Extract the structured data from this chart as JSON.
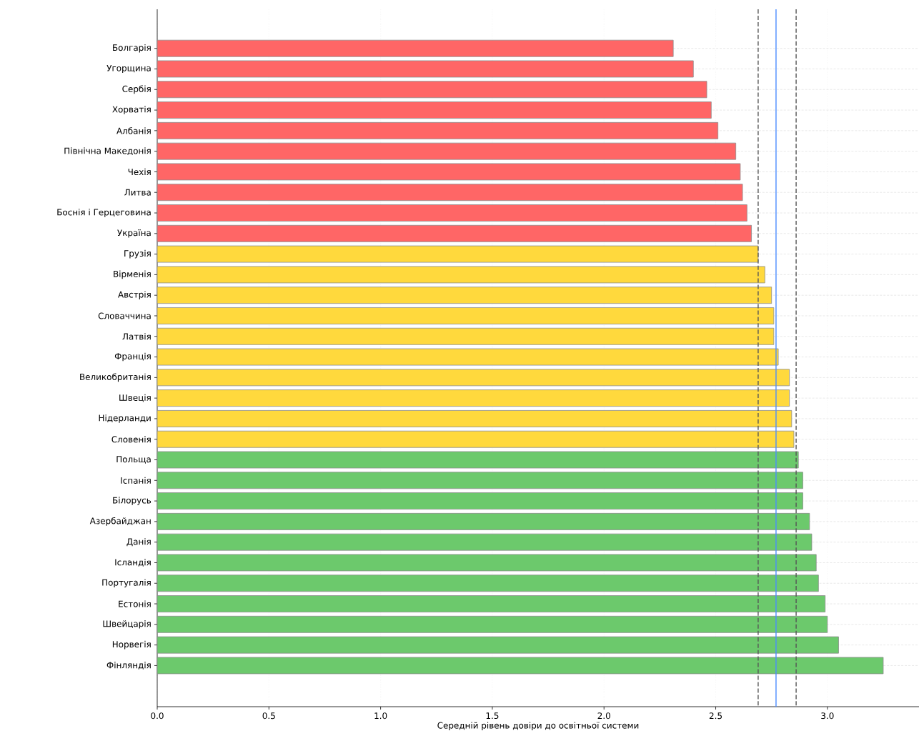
{
  "chart_data": {
    "type": "bar",
    "orientation": "horizontal",
    "xlabel": "Середній рівень довіри до освітньої системи",
    "categories": [
      "Болгарія",
      "Угорщина",
      "Сербія",
      "Хорватія",
      "Албанія",
      "Північна Македонія",
      "Чехія",
      "Литва",
      "Боснія і Герцеговина",
      "Україна",
      "Грузія",
      "Вірменія",
      "Австрія",
      "Словаччина",
      "Латвія",
      "Франція",
      "Великобританія",
      "Швеція",
      "Нідерланди",
      "Словенія",
      "Польща",
      "Іспанія",
      "Білорусь",
      "Азербайджан",
      "Данія",
      "Ісландія",
      "Португалія",
      "Естонія",
      "Швейцарія",
      "Норвегія",
      "Фінляндія"
    ],
    "values": [
      2.31,
      2.4,
      2.46,
      2.48,
      2.51,
      2.59,
      2.61,
      2.62,
      2.64,
      2.66,
      2.69,
      2.72,
      2.75,
      2.76,
      2.76,
      2.78,
      2.83,
      2.83,
      2.84,
      2.85,
      2.87,
      2.89,
      2.89,
      2.92,
      2.93,
      2.95,
      2.96,
      2.99,
      3.0,
      3.05,
      3.25
    ],
    "colors": [
      "#ff6666",
      "#ff6666",
      "#ff6666",
      "#ff6666",
      "#ff6666",
      "#ff6666",
      "#ff6666",
      "#ff6666",
      "#ff6666",
      "#ff6666",
      "#ffd93d",
      "#ffd93d",
      "#ffd93d",
      "#ffd93d",
      "#ffd93d",
      "#ffd93d",
      "#ffd93d",
      "#ffd93d",
      "#ffd93d",
      "#ffd93d",
      "#6cc96c",
      "#6cc96c",
      "#6cc96c",
      "#6cc96c",
      "#6cc96c",
      "#6cc96c",
      "#6cc96c",
      "#6cc96c",
      "#6cc96c",
      "#6cc96c",
      "#6cc96c"
    ],
    "xlim": [
      0,
      3.41
    ],
    "xticks": [
      {
        "value": 0,
        "label": "0.0"
      },
      0.5,
      {
        "value": 1,
        "label": "1.0"
      },
      1.5,
      {
        "value": 2,
        "label": "2.0"
      },
      2.5,
      {
        "value": 3,
        "label": "3.0"
      }
    ],
    "ref_lines": [
      {
        "axis": "x",
        "value": 2.69,
        "color": "#555555",
        "line_style": "dashed"
      },
      {
        "axis": "x",
        "value": 2.77,
        "color": "#4a8cff",
        "line_style": "solid"
      },
      {
        "axis": "x",
        "value": 2.86,
        "color": "#555555",
        "line_style": "dashed"
      }
    ],
    "grid": true
  }
}
